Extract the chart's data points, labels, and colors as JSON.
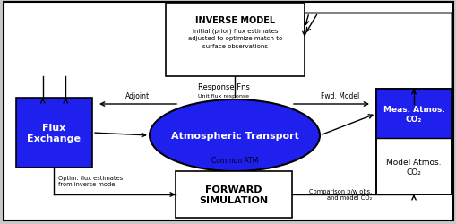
{
  "background_color": "#c8c8c8",
  "inner_background": "#ffffff",
  "blue_color": "#2020ee",
  "forward_sim_text": "FORWARD\nSIMULATION",
  "flux_exchange_text": "Flux\nExchange",
  "atmos_transport_text": "Atmospheric Transport",
  "meas_atmos_top_text": "Meas. Atmos.\nCO₂",
  "model_atmos_text": "Model Atmos.\nCO₂",
  "adjoint_label": "Adjoint",
  "fwd_model_label": "Fwd. Model",
  "common_atm_label": "Common ATM",
  "optim_flux_label": "Optim. flux estimates\nfrom inverse model",
  "comparison_label": "Comparison b/w obs.\nand model CO₂"
}
